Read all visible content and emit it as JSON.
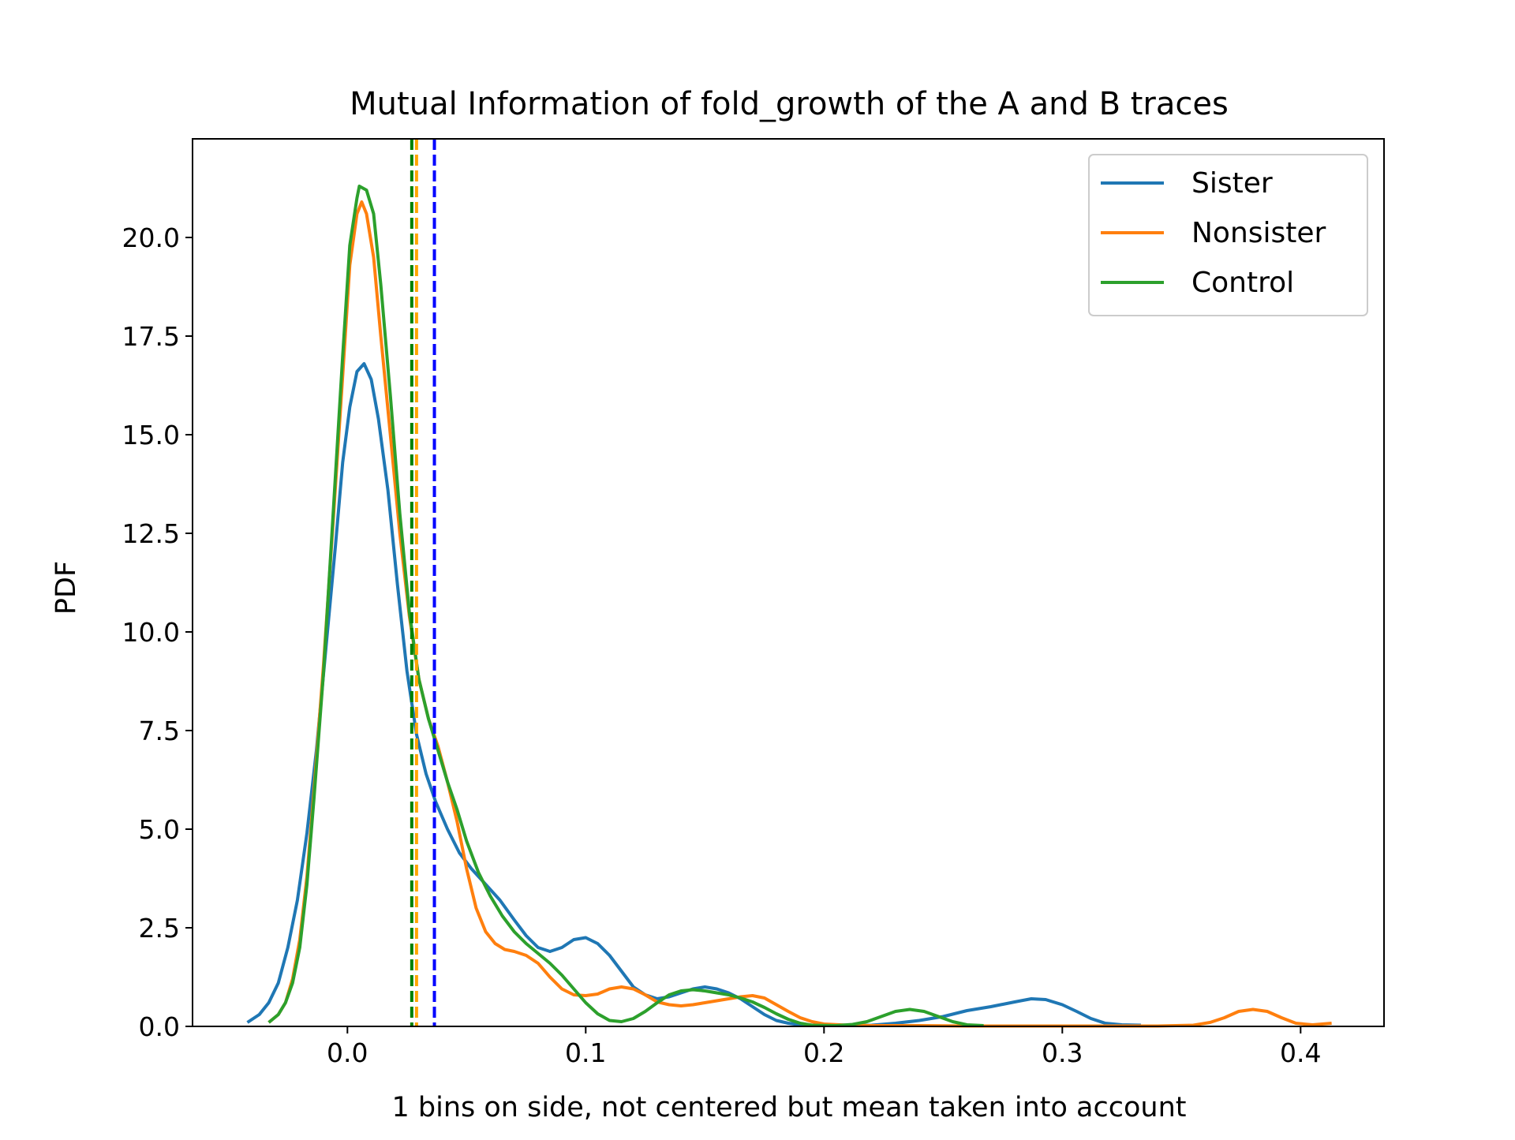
{
  "chart_data": {
    "type": "line",
    "title": "Mutual Information of fold_growth of the A and B traces",
    "xlabel": "1 bins on side, not centered but mean taken into account",
    "ylabel": "PDF",
    "xlim": [
      -0.065,
      0.435
    ],
    "ylim": [
      0,
      22.5
    ],
    "x_ticks": [
      0.0,
      0.1,
      0.2,
      0.3,
      0.4
    ],
    "x_tick_labels": [
      "0.0",
      "0.1",
      "0.2",
      "0.3",
      "0.4"
    ],
    "y_ticks": [
      0.0,
      2.5,
      5.0,
      7.5,
      10.0,
      12.5,
      15.0,
      17.5,
      20.0
    ],
    "y_tick_labels": [
      "0.0",
      "2.5",
      "5.0",
      "7.5",
      "10.0",
      "12.5",
      "15.0",
      "17.5",
      "20.0"
    ],
    "grid": false,
    "legend_position": "top-right",
    "series": [
      {
        "name": "Sister",
        "color": "#1f77b4",
        "points": [
          [
            -0.042,
            0.1
          ],
          [
            -0.037,
            0.3
          ],
          [
            -0.033,
            0.6
          ],
          [
            -0.029,
            1.1
          ],
          [
            -0.025,
            2.0
          ],
          [
            -0.021,
            3.2
          ],
          [
            -0.017,
            4.9
          ],
          [
            -0.013,
            7.0
          ],
          [
            -0.009,
            9.6
          ],
          [
            -0.005,
            12.2
          ],
          [
            -0.002,
            14.3
          ],
          [
            0.001,
            15.7
          ],
          [
            0.004,
            16.6
          ],
          [
            0.007,
            16.8
          ],
          [
            0.01,
            16.4
          ],
          [
            0.013,
            15.4
          ],
          [
            0.017,
            13.6
          ],
          [
            0.021,
            11.2
          ],
          [
            0.025,
            9.0
          ],
          [
            0.029,
            7.4
          ],
          [
            0.033,
            6.4
          ],
          [
            0.037,
            5.7
          ],
          [
            0.042,
            5.0
          ],
          [
            0.047,
            4.4
          ],
          [
            0.052,
            4.0
          ],
          [
            0.058,
            3.6
          ],
          [
            0.064,
            3.2
          ],
          [
            0.07,
            2.7
          ],
          [
            0.075,
            2.3
          ],
          [
            0.08,
            2.0
          ],
          [
            0.085,
            1.9
          ],
          [
            0.09,
            2.0
          ],
          [
            0.095,
            2.2
          ],
          [
            0.1,
            2.25
          ],
          [
            0.105,
            2.1
          ],
          [
            0.11,
            1.8
          ],
          [
            0.115,
            1.4
          ],
          [
            0.12,
            1.0
          ],
          [
            0.125,
            0.8
          ],
          [
            0.13,
            0.7
          ],
          [
            0.135,
            0.75
          ],
          [
            0.14,
            0.85
          ],
          [
            0.145,
            0.95
          ],
          [
            0.15,
            1.0
          ],
          [
            0.155,
            0.95
          ],
          [
            0.16,
            0.85
          ],
          [
            0.165,
            0.7
          ],
          [
            0.17,
            0.5
          ],
          [
            0.175,
            0.3
          ],
          [
            0.18,
            0.15
          ],
          [
            0.185,
            0.08
          ],
          [
            0.19,
            0.04
          ],
          [
            0.2,
            0.02
          ],
          [
            0.21,
            0.02
          ],
          [
            0.22,
            0.03
          ],
          [
            0.23,
            0.08
          ],
          [
            0.24,
            0.15
          ],
          [
            0.25,
            0.25
          ],
          [
            0.26,
            0.4
          ],
          [
            0.27,
            0.5
          ],
          [
            0.28,
            0.62
          ],
          [
            0.287,
            0.7
          ],
          [
            0.293,
            0.68
          ],
          [
            0.3,
            0.55
          ],
          [
            0.306,
            0.38
          ],
          [
            0.312,
            0.2
          ],
          [
            0.318,
            0.08
          ],
          [
            0.325,
            0.04
          ],
          [
            0.333,
            0.03
          ]
        ]
      },
      {
        "name": "Nonsister",
        "color": "#ff7f0e",
        "points": [
          [
            -0.033,
            0.1
          ],
          [
            -0.029,
            0.3
          ],
          [
            -0.026,
            0.6
          ],
          [
            -0.023,
            1.2
          ],
          [
            -0.02,
            2.2
          ],
          [
            -0.017,
            3.8
          ],
          [
            -0.014,
            6.0
          ],
          [
            -0.01,
            9.2
          ],
          [
            -0.006,
            12.8
          ],
          [
            -0.002,
            16.5
          ],
          [
            0.001,
            19.3
          ],
          [
            0.004,
            20.6
          ],
          [
            0.006,
            20.9
          ],
          [
            0.008,
            20.6
          ],
          [
            0.011,
            19.5
          ],
          [
            0.014,
            17.5
          ],
          [
            0.018,
            15.0
          ],
          [
            0.022,
            12.5
          ],
          [
            0.026,
            10.4
          ],
          [
            0.03,
            8.8
          ],
          [
            0.034,
            7.8
          ],
          [
            0.038,
            7.1
          ],
          [
            0.042,
            6.2
          ],
          [
            0.046,
            5.2
          ],
          [
            0.05,
            4.0
          ],
          [
            0.054,
            3.0
          ],
          [
            0.058,
            2.4
          ],
          [
            0.062,
            2.1
          ],
          [
            0.066,
            1.95
          ],
          [
            0.07,
            1.9
          ],
          [
            0.075,
            1.8
          ],
          [
            0.08,
            1.6
          ],
          [
            0.085,
            1.25
          ],
          [
            0.09,
            0.95
          ],
          [
            0.095,
            0.8
          ],
          [
            0.1,
            0.78
          ],
          [
            0.105,
            0.82
          ],
          [
            0.11,
            0.95
          ],
          [
            0.115,
            1.0
          ],
          [
            0.12,
            0.95
          ],
          [
            0.125,
            0.8
          ],
          [
            0.13,
            0.62
          ],
          [
            0.135,
            0.55
          ],
          [
            0.14,
            0.52
          ],
          [
            0.145,
            0.55
          ],
          [
            0.15,
            0.6
          ],
          [
            0.155,
            0.65
          ],
          [
            0.16,
            0.7
          ],
          [
            0.165,
            0.75
          ],
          [
            0.17,
            0.78
          ],
          [
            0.175,
            0.72
          ],
          [
            0.18,
            0.55
          ],
          [
            0.185,
            0.38
          ],
          [
            0.19,
            0.22
          ],
          [
            0.195,
            0.12
          ],
          [
            0.2,
            0.06
          ],
          [
            0.21,
            0.03
          ],
          [
            0.22,
            0.02
          ],
          [
            0.24,
            0.02
          ],
          [
            0.26,
            0.01
          ],
          [
            0.3,
            0.01
          ],
          [
            0.34,
            0.01
          ],
          [
            0.355,
            0.03
          ],
          [
            0.362,
            0.1
          ],
          [
            0.368,
            0.22
          ],
          [
            0.374,
            0.38
          ],
          [
            0.38,
            0.43
          ],
          [
            0.386,
            0.38
          ],
          [
            0.392,
            0.22
          ],
          [
            0.398,
            0.08
          ],
          [
            0.405,
            0.04
          ],
          [
            0.413,
            0.08
          ]
        ]
      },
      {
        "name": "Control",
        "color": "#2ca02c",
        "points": [
          [
            -0.033,
            0.1
          ],
          [
            -0.029,
            0.3
          ],
          [
            -0.026,
            0.6
          ],
          [
            -0.023,
            1.1
          ],
          [
            -0.02,
            2.0
          ],
          [
            -0.017,
            3.6
          ],
          [
            -0.014,
            5.8
          ],
          [
            -0.01,
            9.0
          ],
          [
            -0.006,
            13.0
          ],
          [
            -0.002,
            17.0
          ],
          [
            0.001,
            19.8
          ],
          [
            0.004,
            21.0
          ],
          [
            0.005,
            21.3
          ],
          [
            0.008,
            21.2
          ],
          [
            0.011,
            20.6
          ],
          [
            0.014,
            18.8
          ],
          [
            0.018,
            16.0
          ],
          [
            0.022,
            13.0
          ],
          [
            0.026,
            10.5
          ],
          [
            0.03,
            8.8
          ],
          [
            0.034,
            7.8
          ],
          [
            0.038,
            7.0
          ],
          [
            0.042,
            6.2
          ],
          [
            0.046,
            5.5
          ],
          [
            0.05,
            4.7
          ],
          [
            0.055,
            3.9
          ],
          [
            0.06,
            3.3
          ],
          [
            0.065,
            2.8
          ],
          [
            0.07,
            2.4
          ],
          [
            0.075,
            2.1
          ],
          [
            0.08,
            1.85
          ],
          [
            0.085,
            1.6
          ],
          [
            0.09,
            1.3
          ],
          [
            0.095,
            0.95
          ],
          [
            0.1,
            0.6
          ],
          [
            0.105,
            0.32
          ],
          [
            0.11,
            0.15
          ],
          [
            0.115,
            0.12
          ],
          [
            0.12,
            0.2
          ],
          [
            0.125,
            0.38
          ],
          [
            0.13,
            0.6
          ],
          [
            0.135,
            0.8
          ],
          [
            0.14,
            0.9
          ],
          [
            0.145,
            0.93
          ],
          [
            0.15,
            0.9
          ],
          [
            0.155,
            0.85
          ],
          [
            0.16,
            0.8
          ],
          [
            0.165,
            0.72
          ],
          [
            0.17,
            0.62
          ],
          [
            0.175,
            0.48
          ],
          [
            0.18,
            0.32
          ],
          [
            0.185,
            0.18
          ],
          [
            0.19,
            0.08
          ],
          [
            0.195,
            0.03
          ],
          [
            0.205,
            0.02
          ],
          [
            0.212,
            0.05
          ],
          [
            0.218,
            0.12
          ],
          [
            0.224,
            0.25
          ],
          [
            0.23,
            0.38
          ],
          [
            0.236,
            0.43
          ],
          [
            0.242,
            0.38
          ],
          [
            0.248,
            0.25
          ],
          [
            0.254,
            0.12
          ],
          [
            0.26,
            0.04
          ],
          [
            0.267,
            0.02
          ]
        ]
      }
    ],
    "mean_lines": [
      {
        "series": "Sister",
        "x": 0.0365,
        "color": "#0000ff"
      },
      {
        "series": "Nonsister",
        "x": 0.029,
        "color": "#ffa500"
      },
      {
        "series": "Control",
        "x": 0.027,
        "color": "#008000"
      }
    ]
  }
}
